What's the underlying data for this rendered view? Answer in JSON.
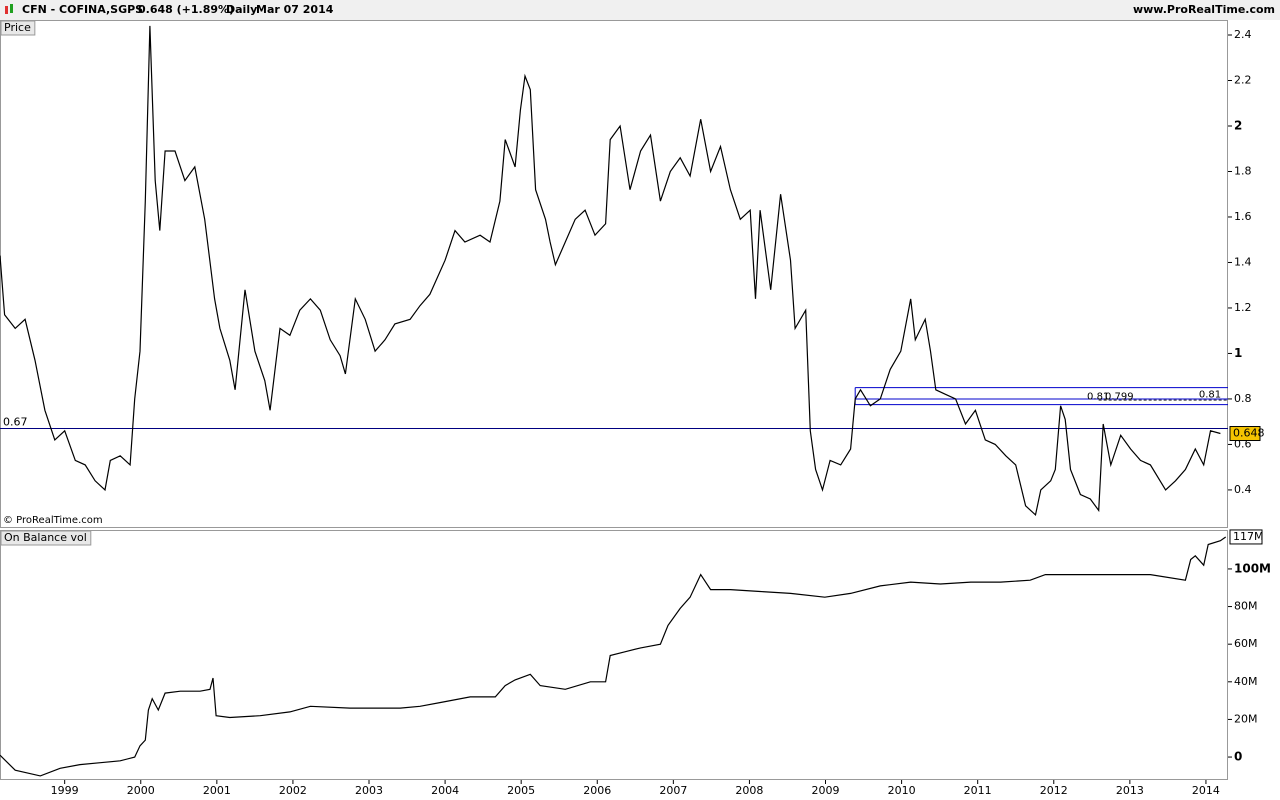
{
  "header": {
    "symbol": "CFN - COFINA,SGPS",
    "quote": "0.648 (+1.89%)",
    "period": "Daily",
    "date": "Mar 07 2014",
    "site": "www.ProRealTime.com"
  },
  "chart_data": [
    {
      "type": "line",
      "title": "Price",
      "watermark": "© ProRealTime.com",
      "color": "#000000",
      "x": [
        1998.15,
        1998.21,
        1998.35,
        1998.48,
        1998.61,
        1998.74,
        1998.87,
        1999.0,
        1999.14,
        1999.27,
        1999.4,
        1999.53,
        1999.6,
        1999.73,
        1999.86,
        1999.92,
        1999.99,
        2000.06,
        2000.12,
        2000.19,
        2000.25,
        2000.32,
        2000.45,
        2000.58,
        2000.71,
        2000.84,
        2000.97,
        2001.04,
        2001.17,
        2001.24,
        2001.37,
        2001.5,
        2001.63,
        2001.7,
        2001.83,
        2001.96,
        2002.09,
        2002.23,
        2002.36,
        2002.49,
        2002.62,
        2002.69,
        2002.82,
        2002.95,
        2003.08,
        2003.21,
        2003.34,
        2003.54,
        2003.67,
        2003.8,
        2004.0,
        2004.13,
        2004.26,
        2004.46,
        2004.59,
        2004.72,
        2004.79,
        2004.92,
        2004.99,
        2005.05,
        2005.12,
        2005.19,
        2005.32,
        2005.38,
        2005.45,
        2005.58,
        2005.71,
        2005.84,
        2005.97,
        2006.11,
        2006.17,
        2006.3,
        2006.43,
        2006.57,
        2006.7,
        2006.83,
        2006.96,
        2007.09,
        2007.22,
        2007.36,
        2007.49,
        2007.62,
        2007.75,
        2007.88,
        2008.01,
        2008.08,
        2008.14,
        2008.28,
        2008.41,
        2008.54,
        2008.6,
        2008.74,
        2008.8,
        2008.87,
        2008.96,
        2009.06,
        2009.2,
        2009.33,
        2009.39,
        2009.46,
        2009.59,
        2009.72,
        2009.85,
        2009.99,
        2010.12,
        2010.18,
        2010.31,
        2010.38,
        2010.45,
        2010.58,
        2010.71,
        2010.84,
        2010.97,
        2011.1,
        2011.23,
        2011.37,
        2011.5,
        2011.63,
        2011.76,
        2011.83,
        2011.96,
        2012.02,
        2012.09,
        2012.15,
        2012.22,
        2012.35,
        2012.48,
        2012.59,
        2012.65,
        2012.75,
        2012.88,
        2013.01,
        2013.14,
        2013.27,
        2013.47,
        2013.6,
        2013.73,
        2013.86,
        2013.97,
        2014.06,
        2014.19
      ],
      "values": [
        1.43,
        1.17,
        1.11,
        1.15,
        0.97,
        0.75,
        0.62,
        0.66,
        0.53,
        0.51,
        0.44,
        0.4,
        0.53,
        0.55,
        0.51,
        0.8,
        1.01,
        1.67,
        2.44,
        1.76,
        1.54,
        1.89,
        1.89,
        1.76,
        1.82,
        1.59,
        1.24,
        1.11,
        0.97,
        0.84,
        1.28,
        1.01,
        0.88,
        0.75,
        1.11,
        1.08,
        1.19,
        1.24,
        1.19,
        1.06,
        0.99,
        0.91,
        1.24,
        1.15,
        1.01,
        1.06,
        1.13,
        1.15,
        1.21,
        1.26,
        1.41,
        1.54,
        1.49,
        1.52,
        1.49,
        1.67,
        1.94,
        1.82,
        2.07,
        2.22,
        2.16,
        1.72,
        1.59,
        1.49,
        1.39,
        1.49,
        1.59,
        1.63,
        1.52,
        1.57,
        1.94,
        2.0,
        1.72,
        1.89,
        1.96,
        1.67,
        1.8,
        1.86,
        1.78,
        2.03,
        1.8,
        1.91,
        1.72,
        1.59,
        1.63,
        1.24,
        1.63,
        1.28,
        1.7,
        1.41,
        1.11,
        1.19,
        0.66,
        0.49,
        0.4,
        0.53,
        0.51,
        0.58,
        0.8,
        0.84,
        0.77,
        0.8,
        0.93,
        1.01,
        1.24,
        1.06,
        1.15,
        1.01,
        0.84,
        0.82,
        0.8,
        0.69,
        0.75,
        0.62,
        0.6,
        0.55,
        0.51,
        0.33,
        0.29,
        0.4,
        0.44,
        0.49,
        0.77,
        0.71,
        0.49,
        0.38,
        0.36,
        0.31,
        0.69,
        0.51,
        0.64,
        0.58,
        0.53,
        0.51,
        0.4,
        0.44,
        0.49,
        0.58,
        0.51,
        0.66,
        0.648
      ],
      "last_value": 0.648,
      "xlim": [
        1998.15,
        2014.29
      ],
      "ylim": [
        0.237,
        2.466
      ],
      "yticks": [
        0.4,
        0.6,
        0.8,
        1,
        1.2,
        1.4,
        1.6,
        1.8,
        2,
        2.2,
        2.4
      ],
      "hlines": [
        {
          "value": 0.67,
          "label": "0.67",
          "color": "#000080"
        }
      ],
      "levels": [
        {
          "value": 0.85,
          "from": 2009.39,
          "color": "#0000cc"
        },
        {
          "value": 0.8,
          "from": 2009.39,
          "color": "#0000cc"
        },
        {
          "value": 0.775,
          "from": 2009.39,
          "color": "#0000cc"
        }
      ],
      "dashed_level": {
        "value": 0.795,
        "from": 2012.59,
        "color": "#333333"
      },
      "annotations": [
        {
          "text": "0.81",
          "x": 2012.73,
          "y": 0.81
        },
        {
          "text": "0.799",
          "x": 2013.05,
          "y": 0.81
        },
        {
          "text": "0.81",
          "x": 2014.2,
          "y": 0.82
        }
      ]
    },
    {
      "type": "line",
      "title": "On Balance vol",
      "color": "#000000",
      "x": [
        1998.15,
        1998.35,
        1998.68,
        1998.94,
        1999.2,
        1999.47,
        1999.73,
        1999.92,
        1999.99,
        2000.06,
        2000.1,
        2000.15,
        2000.23,
        2000.32,
        2000.52,
        2000.78,
        2000.91,
        2000.95,
        2000.99,
        2001.17,
        2001.57,
        2001.96,
        2002.23,
        2002.75,
        2003.41,
        2003.67,
        2003.94,
        2004.33,
        2004.66,
        2004.79,
        2004.92,
        2005.12,
        2005.25,
        2005.58,
        2005.91,
        2006.11,
        2006.17,
        2006.37,
        2006.57,
        2006.83,
        2006.93,
        2007.09,
        2007.22,
        2007.36,
        2007.49,
        2007.75,
        2008.14,
        2008.54,
        2008.99,
        2009.33,
        2009.72,
        2010.12,
        2010.51,
        2010.91,
        2011.3,
        2011.69,
        2011.89,
        2012.35,
        2012.88,
        2013.27,
        2013.73,
        2013.8,
        2013.86,
        2013.97,
        2014.03,
        2014.19,
        2014.26
      ],
      "values": [
        1,
        -7,
        -10,
        -6,
        -4,
        -3,
        -2,
        0,
        6,
        9,
        25,
        31,
        25,
        34,
        35,
        35,
        36,
        42,
        22,
        21,
        22,
        24,
        27,
        26,
        26,
        27,
        29,
        32,
        32,
        38,
        41,
        44,
        38,
        36,
        40,
        40,
        54,
        56,
        58,
        60,
        70,
        79,
        85,
        97,
        89,
        89,
        88,
        87,
        85,
        87,
        91,
        93,
        92,
        93,
        93,
        94,
        97,
        97,
        97,
        97,
        94,
        105,
        107,
        102,
        113,
        115,
        117
      ],
      "last_value": {
        "value": 117,
        "label": "117M"
      },
      "xlim": [
        1998.15,
        2014.29
      ],
      "ylim": [
        -12.2,
        120.7
      ],
      "yticks": [
        0,
        {
          "value": 20,
          "label": "20M"
        },
        {
          "value": 40,
          "label": "40M"
        },
        {
          "value": 60,
          "label": "60M"
        },
        {
          "value": 80,
          "label": "80M"
        },
        {
          "value": 100,
          "label": "100M"
        }
      ],
      "xticks": [
        1999,
        2000,
        2001,
        2002,
        2003,
        2004,
        2005,
        2006,
        2007,
        2008,
        2009,
        2010,
        2011,
        2012,
        2013,
        2014
      ]
    }
  ]
}
